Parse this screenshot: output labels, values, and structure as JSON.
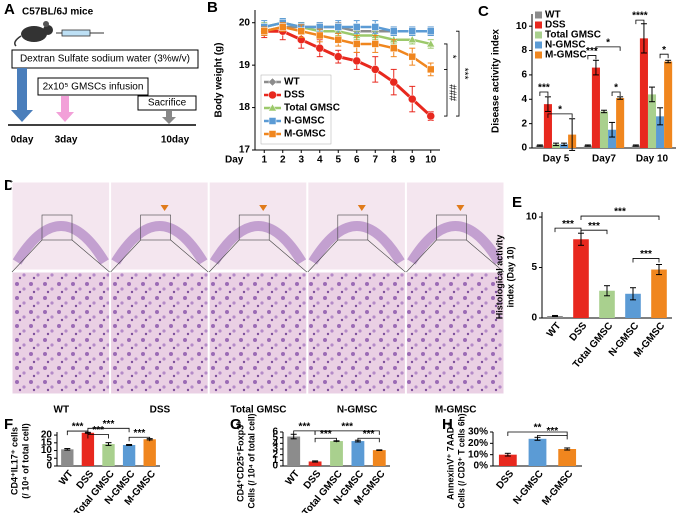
{
  "panel_labels": [
    "A",
    "B",
    "C",
    "D",
    "E",
    "F",
    "G",
    "H"
  ],
  "schematic": {
    "mouse": "C57BL/6J mice",
    "treatment": "Dextran Sulfate sodium water (3%w/v)",
    "infusion": "2x10⁵ GMSCs infusion",
    "end": "Sacrifice",
    "timeline": [
      "0day",
      "3day",
      "10day"
    ]
  },
  "histology": {
    "groups": [
      "WT",
      "DSS",
      "Total GMSC",
      "N-GMSC",
      "M-GMSC"
    ]
  },
  "chart_data": [
    {
      "type": "line",
      "y_label": "Body weight (g)",
      "x_label": "Day",
      "x": [
        1,
        2,
        3,
        4,
        5,
        6,
        7,
        8,
        9,
        10
      ],
      "xlim": [
        0.5,
        10.5
      ],
      "ylim": [
        17,
        20.3
      ],
      "yticks": [
        17,
        18,
        19,
        20
      ],
      "legend": "lower left",
      "annotations": [
        "*",
        "***",
        "###"
      ],
      "series": [
        {
          "name": "WT",
          "color": "#8c8c8c",
          "marker": "diamond",
          "values": [
            19.8,
            19.9,
            19.9,
            19.9,
            19.9,
            19.8,
            19.8,
            19.8,
            19.8,
            19.8
          ],
          "errors": [
            0.1,
            0.1,
            0.1,
            0.1,
            0.1,
            0.1,
            0.1,
            0.1,
            0.1,
            0.1
          ]
        },
        {
          "name": "DSS",
          "color": "#e8281e",
          "marker": "circle",
          "values": [
            19.8,
            19.8,
            19.6,
            19.4,
            19.2,
            19.1,
            18.9,
            18.6,
            18.2,
            17.8
          ],
          "errors": [
            0.15,
            0.2,
            0.2,
            0.2,
            0.15,
            0.2,
            0.3,
            0.3,
            0.3,
            0.1
          ]
        },
        {
          "name": "Total GMSC",
          "color": "#9cc96b",
          "marker": "triangle",
          "values": [
            19.9,
            20.0,
            19.9,
            19.8,
            19.8,
            19.7,
            19.7,
            19.6,
            19.6,
            19.5
          ],
          "errors": [
            0.1,
            0.1,
            0.1,
            0.1,
            0.1,
            0.1,
            0.1,
            0.1,
            0.1,
            0.1
          ]
        },
        {
          "name": "N-GMSC",
          "color": "#5b9bd5",
          "marker": "square",
          "values": [
            19.9,
            20.0,
            19.9,
            19.9,
            19.9,
            19.9,
            19.9,
            19.8,
            19.8,
            19.8
          ],
          "errors": [
            0.15,
            0.1,
            0.1,
            0.1,
            0.15,
            0.15,
            0.15,
            0.1,
            0.1,
            0.1
          ]
        },
        {
          "name": "M-GMSC",
          "color": "#f0861e",
          "marker": "square",
          "values": [
            19.8,
            19.9,
            19.8,
            19.7,
            19.6,
            19.5,
            19.5,
            19.4,
            19.2,
            18.9
          ],
          "errors": [
            0.1,
            0.1,
            0.15,
            0.15,
            0.15,
            0.2,
            0.2,
            0.2,
            0.2,
            0.15
          ]
        }
      ]
    },
    {
      "type": "bar",
      "y_label": "Disease activity index",
      "categories": [
        "Day 5",
        "Day7",
        "Day 10"
      ],
      "ylim": [
        0,
        11
      ],
      "yticks": [
        0,
        2,
        4,
        6,
        8,
        10
      ],
      "legend": "upper left",
      "annotations": [
        "***",
        "*",
        "***",
        "*",
        "*",
        "****",
        "*"
      ],
      "series": [
        {
          "name": "WT",
          "color": "#8c8c8c",
          "values": [
            0.2,
            0.2,
            0.2
          ],
          "errors": [
            0.05,
            0.05,
            0.05
          ]
        },
        {
          "name": "DSS",
          "color": "#e8281e",
          "values": [
            3.6,
            6.6,
            9.0
          ],
          "errors": [
            0.6,
            0.6,
            1.2
          ]
        },
        {
          "name": "Total GMSC",
          "color": "#a9d08e",
          "values": [
            0.3,
            3.0,
            4.4
          ],
          "errors": [
            0.1,
            0.1,
            0.6
          ]
        },
        {
          "name": "N-GMSC",
          "color": "#5b9bd5",
          "values": [
            0.3,
            1.5,
            2.6
          ],
          "errors": [
            0.1,
            0.6,
            0.7
          ]
        },
        {
          "name": "M-GMSC",
          "color": "#f0861e",
          "values": [
            1.1,
            4.1,
            7.1
          ],
          "errors": [
            1.3,
            0.1,
            0.1
          ]
        }
      ]
    },
    {
      "type": "bar",
      "y_label": [
        "Histological activity",
        "index (Day 10)"
      ],
      "categories": [
        "WT",
        "DSS",
        "Total GMSC",
        "N-GMSC",
        "M-GMSC"
      ],
      "values": [
        0.2,
        7.8,
        2.7,
        2.4,
        4.8
      ],
      "errors": [
        0.05,
        0.6,
        0.5,
        0.6,
        0.5
      ],
      "colors": [
        "#8c8c8c",
        "#e8281e",
        "#a9d08e",
        "#5b9bd5",
        "#f0861e"
      ],
      "ylim": [
        0,
        10.5
      ],
      "yticks": [
        0,
        5,
        10
      ],
      "annotations": [
        "***",
        "***",
        "***",
        "***"
      ]
    },
    {
      "type": "bar",
      "y_label": [
        "CD4⁺IL17⁺ cells",
        "(/ 10⁴ of total cell)"
      ],
      "categories": [
        "WT",
        "DSS",
        "Total GMSC",
        "N-GMSC",
        "M-GMSC"
      ],
      "values": [
        10.8,
        21.5,
        14.2,
        13.6,
        17.3
      ],
      "errors": [
        0.5,
        0.3,
        0.9,
        0.3,
        0.4
      ],
      "colors": [
        "#8c8c8c",
        "#e8281e",
        "#a9d08e",
        "#5b9bd5",
        "#f0861e"
      ],
      "ylim": [
        0,
        22
      ],
      "yticks": [
        0,
        5,
        10,
        15,
        20
      ],
      "annotations": [
        "***",
        "***",
        "***",
        "***"
      ]
    },
    {
      "type": "bar",
      "y_label": [
        "CD4⁺CD25⁺Foxp3⁺",
        "Cells (/ 10⁴ of total cell)"
      ],
      "categories": [
        "WT",
        "DSS",
        "Total GMSC",
        "N-GMSC",
        "M-GMSC"
      ],
      "values": [
        5.2,
        0.8,
        4.4,
        4.4,
        2.8
      ],
      "errors": [
        0.4,
        0.1,
        0.05,
        0.15,
        0.05
      ],
      "colors": [
        "#8c8c8c",
        "#e8281e",
        "#a9d08e",
        "#5b9bd5",
        "#f0861e"
      ],
      "ylim": [
        0,
        6
      ],
      "yticks": [
        0,
        1,
        2,
        3,
        4,
        5,
        6
      ],
      "annotations": [
        "***",
        "***",
        "***",
        "***"
      ]
    },
    {
      "type": "bar",
      "y_label": [
        "AnnexinV⁺ 7AAD⁺",
        "Cells (/ CD3⁺ T cells 6h)"
      ],
      "categories": [
        "DSS",
        "N-GMSC",
        "M-GMSC"
      ],
      "values": [
        10,
        24,
        15
      ],
      "errors": [
        1.2,
        1.3,
        0.9
      ],
      "colors": [
        "#e8281e",
        "#5b9bd5",
        "#f0861e"
      ],
      "ylim": [
        0,
        30
      ],
      "yticks": [
        {
          "value": 0,
          "label": "0%"
        },
        {
          "value": 10,
          "label": "10%"
        },
        {
          "value": 20,
          "label": "20%"
        },
        {
          "value": 30,
          "label": "30%"
        }
      ],
      "annotations": [
        "**",
        "***"
      ]
    }
  ]
}
